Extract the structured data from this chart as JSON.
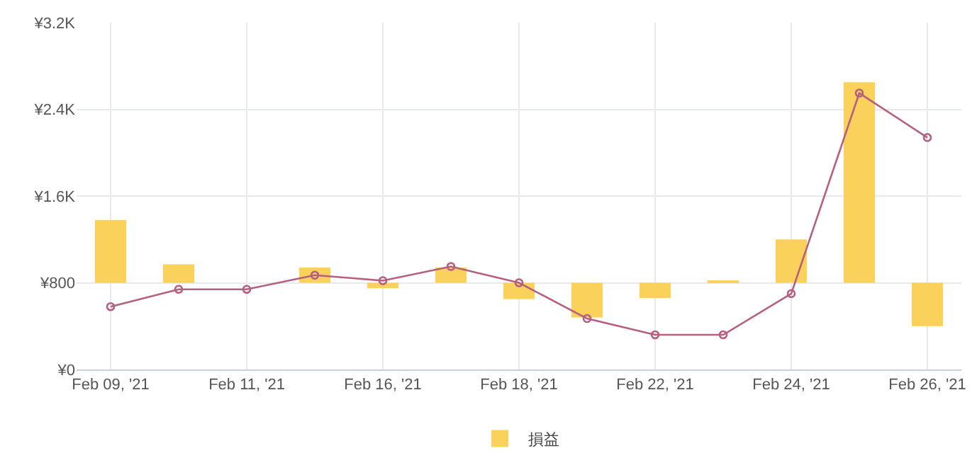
{
  "chart_data": {
    "type": "bar",
    "categories": [
      "Feb 09, '21",
      null,
      "Feb 11, '21",
      null,
      "Feb 16, '21",
      null,
      "Feb 18, '21",
      null,
      "Feb 22, '21",
      null,
      "Feb 24, '21",
      null,
      "Feb 26, '21"
    ],
    "series": [
      {
        "name": "損益",
        "color": "#f9d15b",
        "values": [
          580,
          170,
          null,
          140,
          -50,
          140,
          -150,
          -320,
          -140,
          10,
          400,
          1850,
          -400
        ],
        "base": [
          800,
          800,
          null,
          800,
          800,
          800,
          800,
          800,
          800,
          800,
          800,
          800,
          800
        ]
      },
      {
        "type": "line",
        "color": "#b5607f",
        "marker": "circle",
        "line_style": "solid",
        "values": [
          580,
          740,
          740,
          870,
          820,
          950,
          800,
          470,
          320,
          320,
          700,
          2550,
          2140
        ]
      }
    ],
    "ylim": [
      0,
      3200
    ],
    "yticks": [
      {
        "value": 0,
        "label": "¥0"
      },
      {
        "value": 800,
        "label": "¥800"
      },
      {
        "value": 1600,
        "label": "¥1.6K"
      },
      {
        "value": 2400,
        "label": "¥2.4K"
      },
      {
        "value": 3200,
        "label": "¥3.2K"
      }
    ],
    "grid": true,
    "legend": "bottom"
  }
}
